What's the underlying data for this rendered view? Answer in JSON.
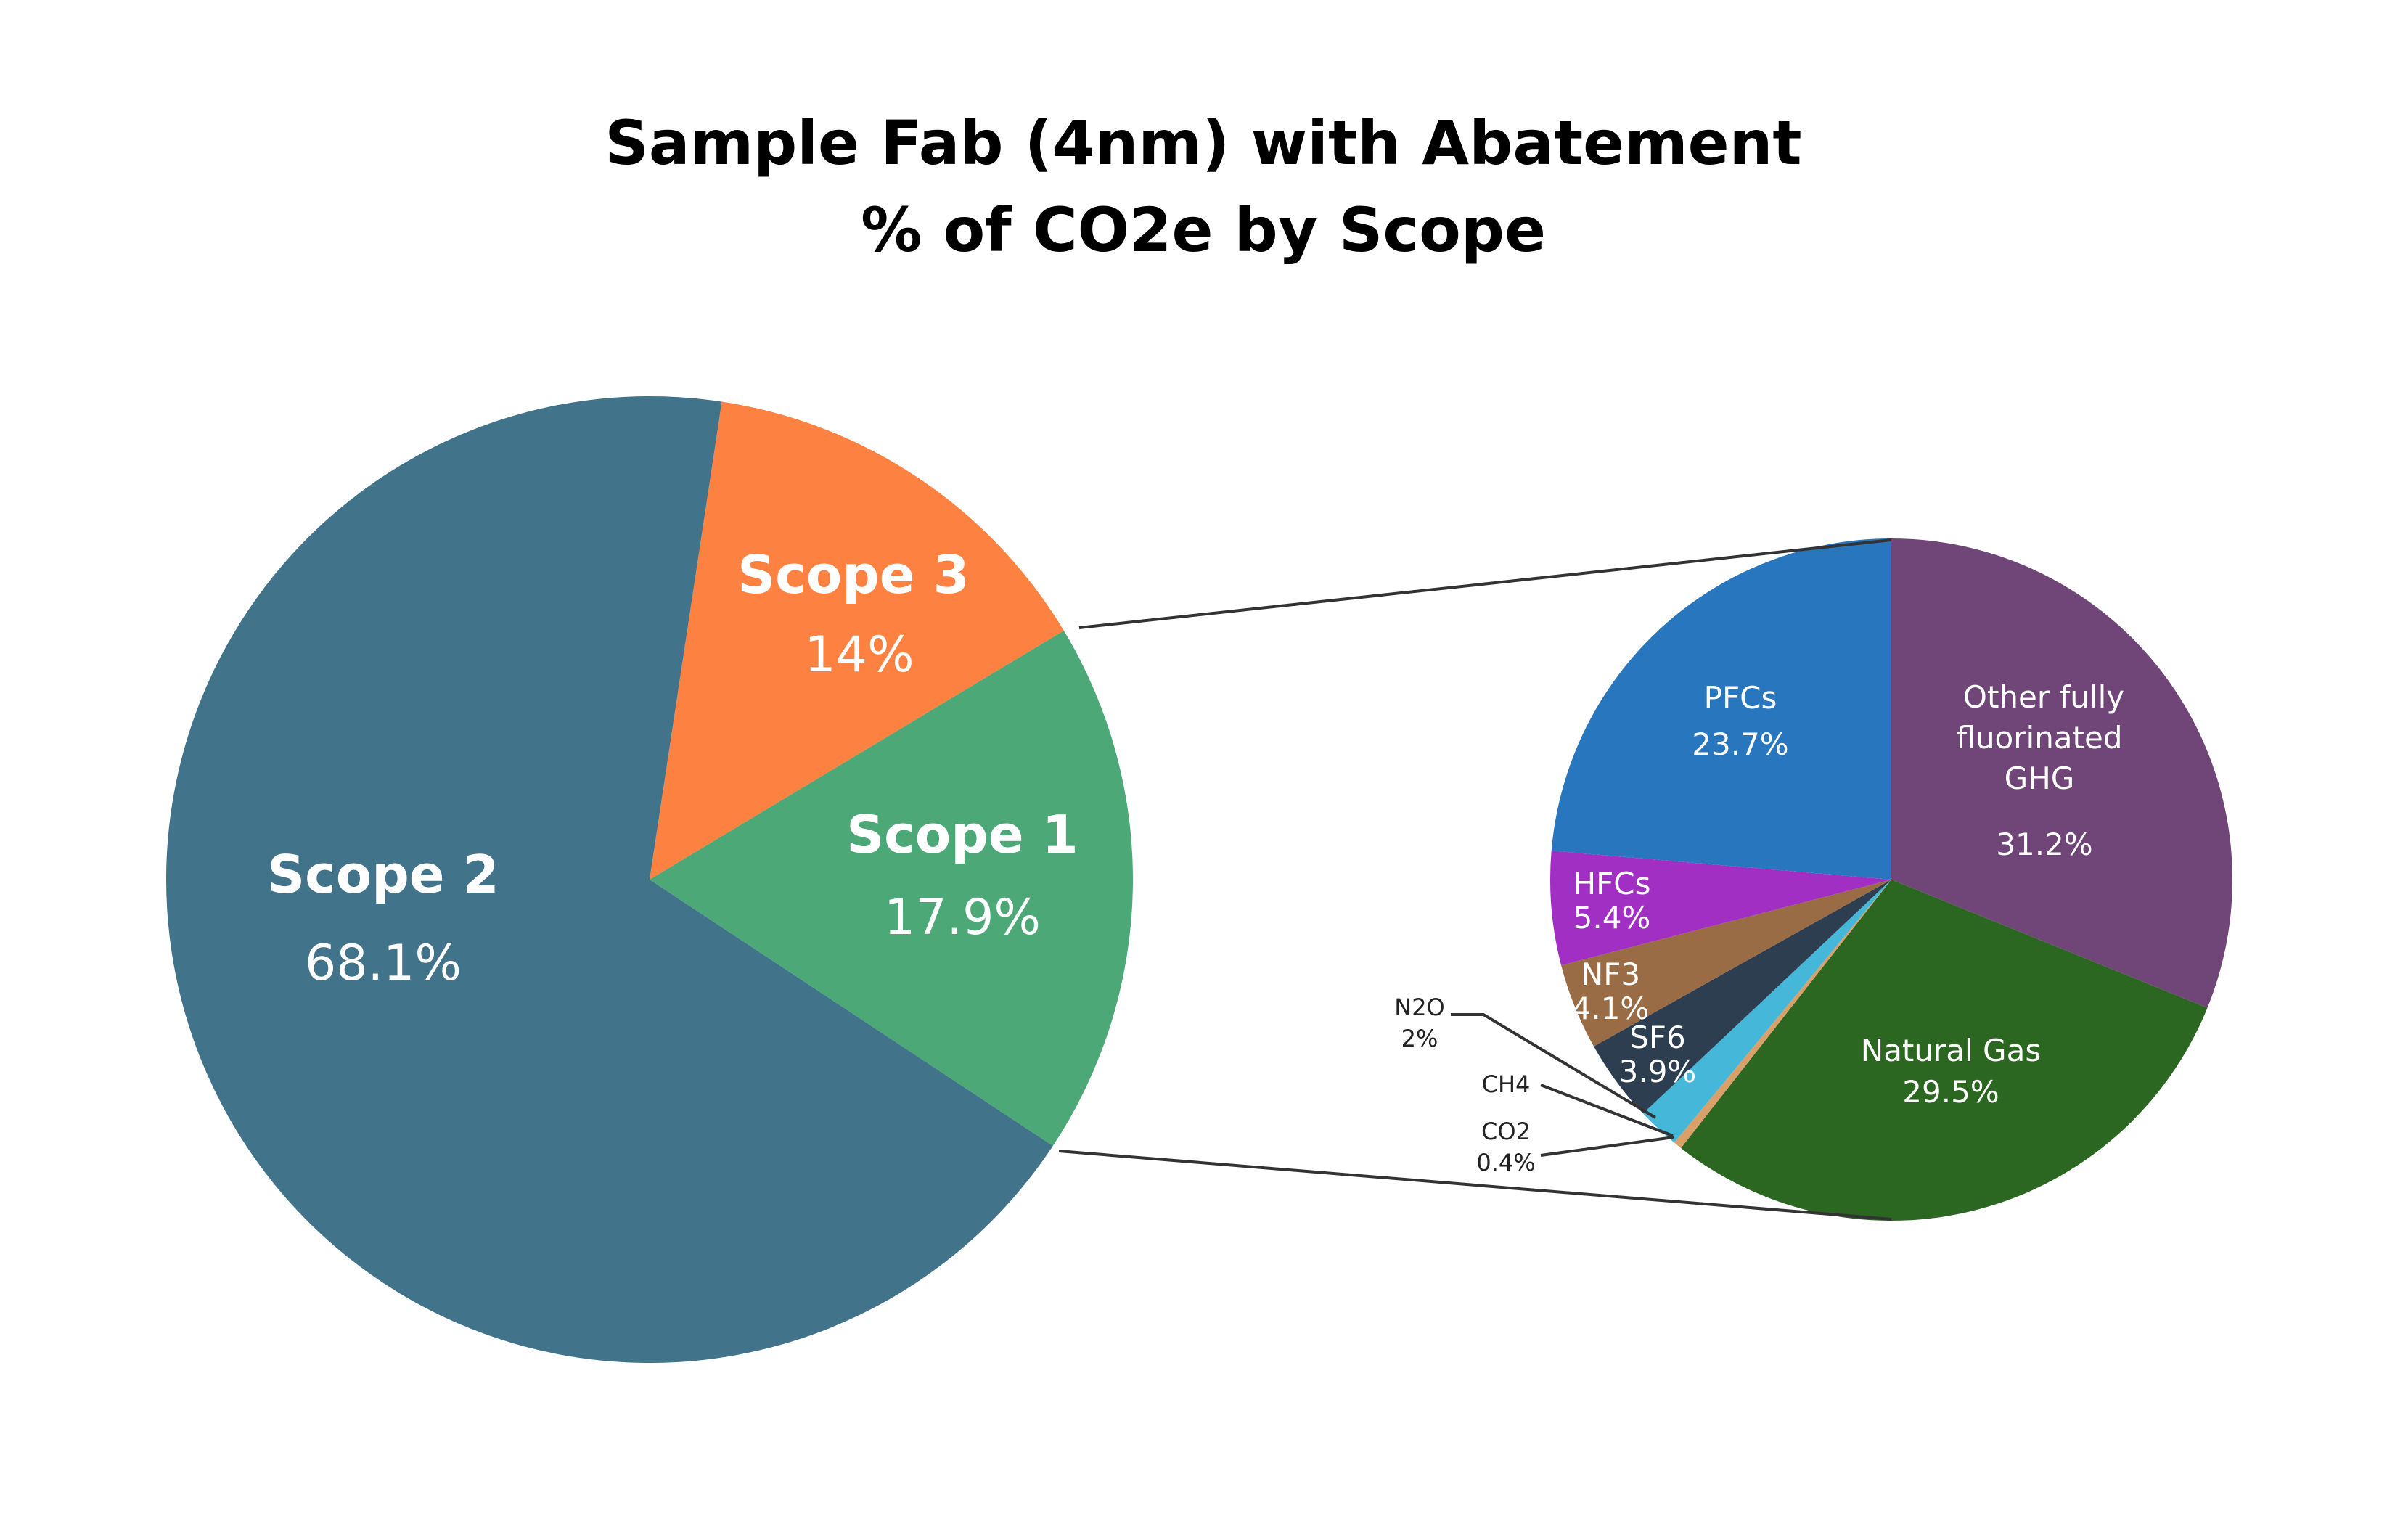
{
  "chart_data": [
    {
      "type": "pie",
      "title": [
        "Sample Fab (4nm) with Abatement",
        "% of CO2e by Scope"
      ],
      "categories": [
        "Scope 3",
        "Scope 1",
        "Scope 2"
      ],
      "values": [
        14,
        17.9,
        68.1
      ],
      "value_labels": [
        "14%",
        "17.9%",
        "68.1%"
      ],
      "colors": [
        "#fd8140",
        "#4ca876",
        "#41738a"
      ]
    },
    {
      "type": "pie",
      "note_exploded_from": "Scope 1",
      "categories": [
        "Other fully fluorinated GHG",
        "Natural Gas",
        "CO2",
        "CH4",
        "N2O",
        "SF6",
        "NF3",
        "HFCs",
        "PFCs"
      ],
      "label_lines": [
        [
          "Other fully",
          "fluorinated",
          "GHG"
        ],
        [
          "Natural Gas"
        ],
        [
          "CO2"
        ],
        [
          "CH4"
        ],
        [
          "N2O"
        ],
        [
          "SF6"
        ],
        [
          "NF3"
        ],
        [
          "HFCs"
        ],
        [
          "PFCs"
        ]
      ],
      "values": [
        31.2,
        29.5,
        0.4,
        0,
        2,
        3.9,
        4.1,
        5.4,
        23.7
      ],
      "value_labels": [
        "31.2%",
        "29.5%",
        "0.4%",
        "",
        "2%",
        "3.9%",
        "4.1%",
        "5.4%",
        "23.7%"
      ],
      "colors": [
        "#6f4677",
        "#2b6721",
        "#d9a06a",
        "#e0e0e0",
        "#45b7d8",
        "#2c3e50",
        "#9a6c45",
        "#a22fc4",
        "#2876bd"
      ]
    }
  ]
}
